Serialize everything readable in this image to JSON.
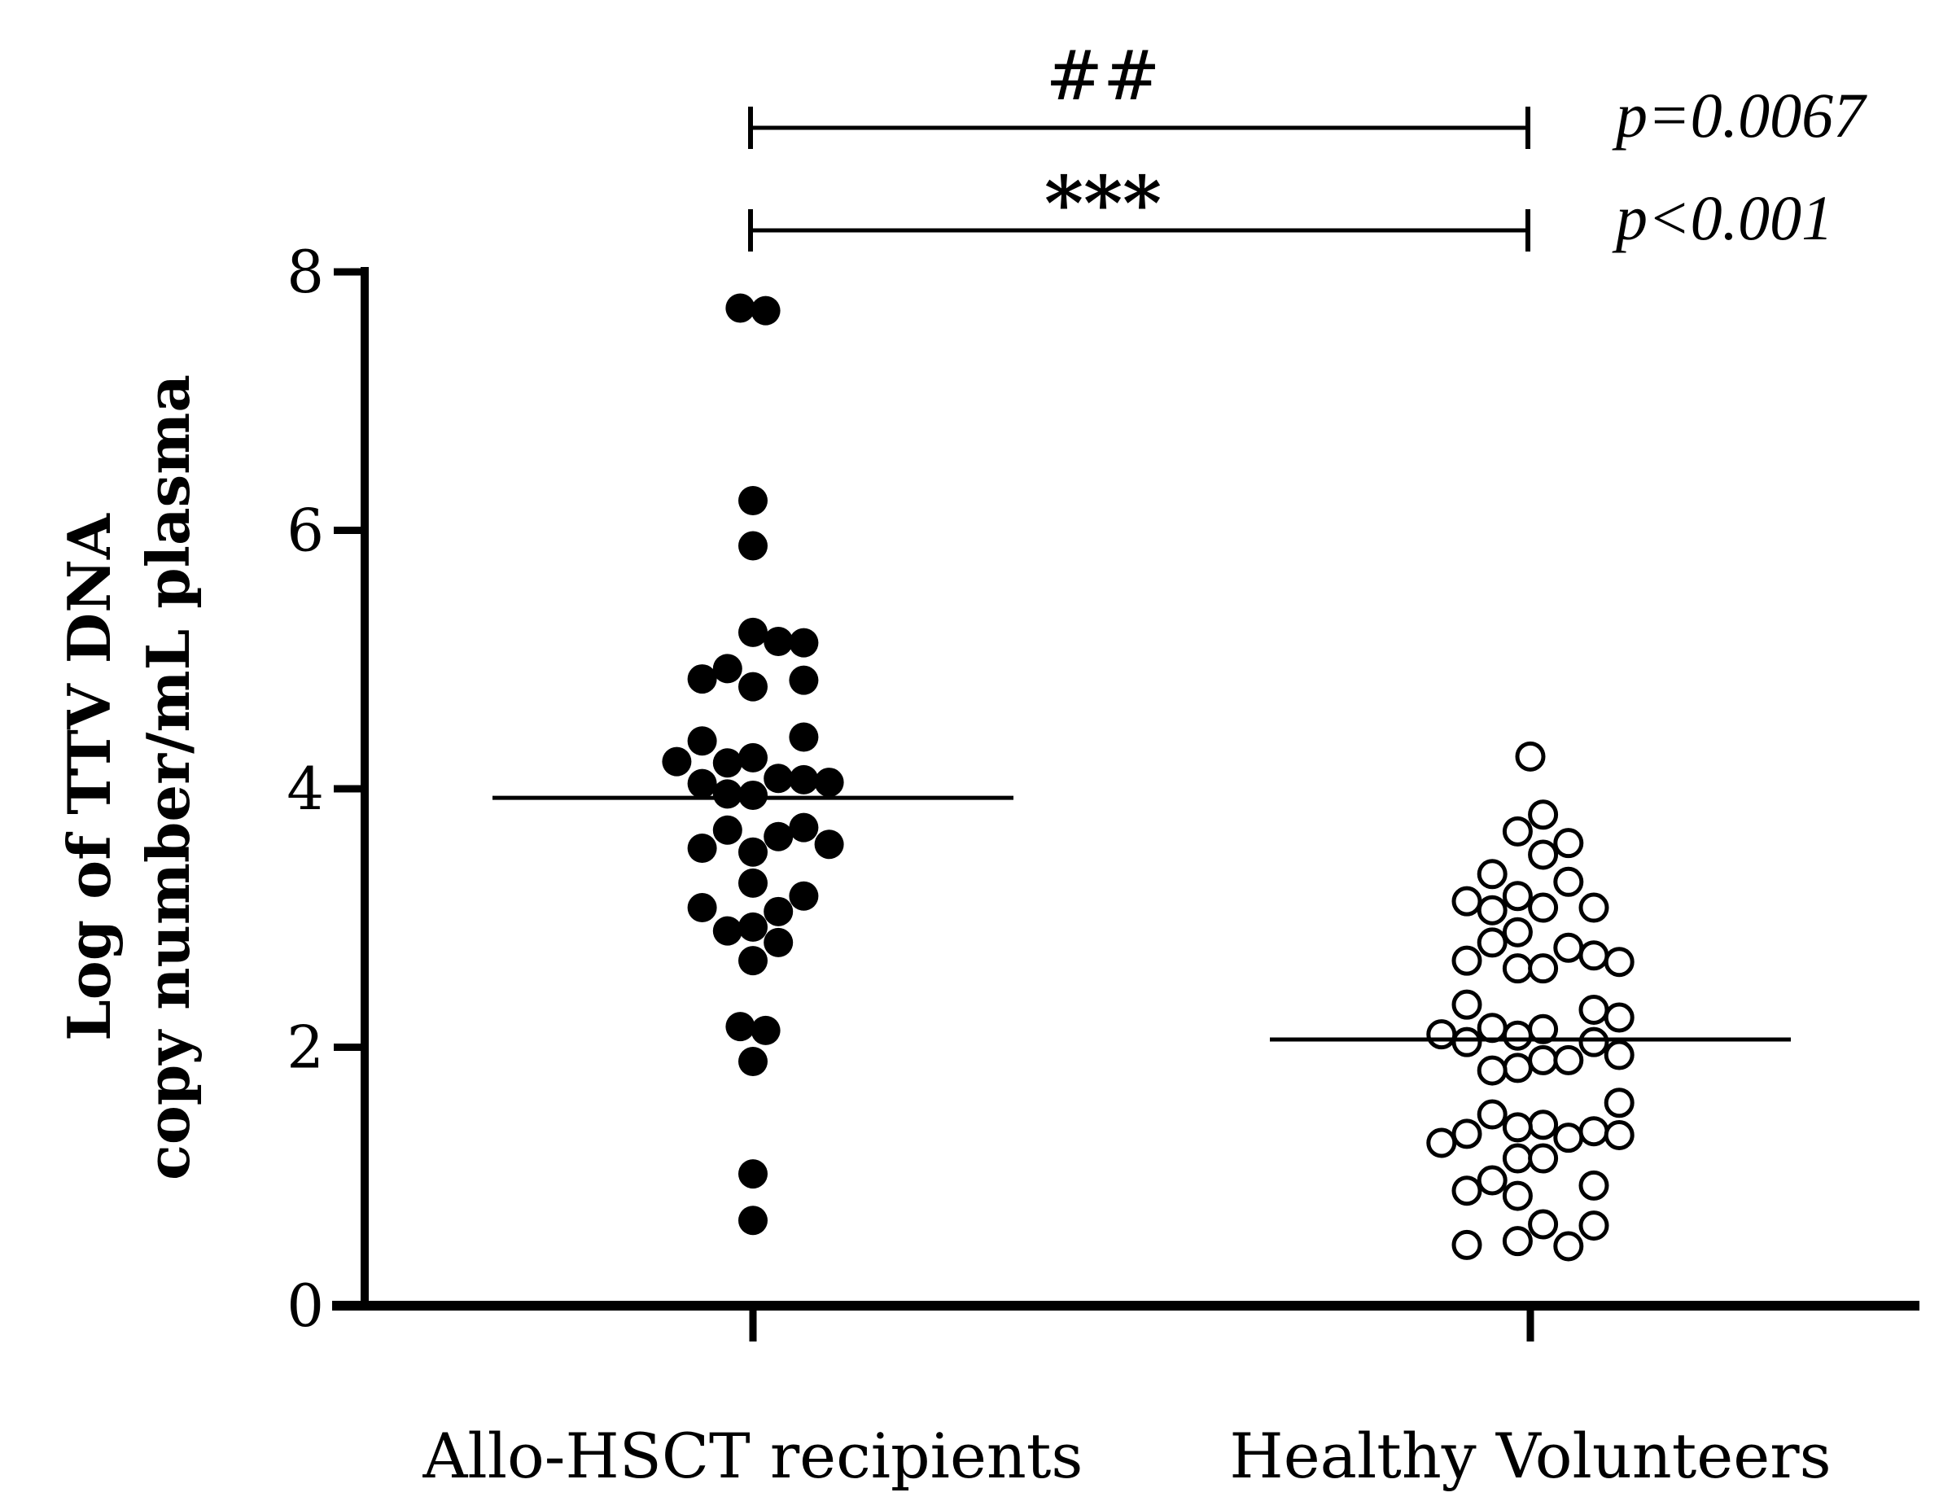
{
  "chart_data": {
    "type": "scatter",
    "subtype": "dot-plot",
    "ylabel_line1": "Log of TTV DNA",
    "ylabel_line2": "copy number/mL plasma",
    "ylim": [
      0,
      8
    ],
    "yticks": [
      0,
      2,
      4,
      6,
      8
    ],
    "ytick_labels": [
      "0",
      "2",
      "4",
      "6",
      "8"
    ],
    "categories": [
      "Allo-HSCT recipients",
      "Healthy Volunteers"
    ],
    "series": [
      {
        "name": "Allo-HSCT recipients",
        "marker": "filled-circle",
        "median": 3.93,
        "points": [
          {
            "x": -0.04,
            "y": 7.72
          },
          {
            "x": 0.04,
            "y": 7.7
          },
          {
            "x": 0.0,
            "y": 6.23
          },
          {
            "x": 0.0,
            "y": 5.88
          },
          {
            "x": 0.0,
            "y": 5.21
          },
          {
            "x": 0.08,
            "y": 5.14
          },
          {
            "x": 0.16,
            "y": 5.13
          },
          {
            "x": -0.08,
            "y": 4.93
          },
          {
            "x": -0.16,
            "y": 4.85
          },
          {
            "x": 0.16,
            "y": 4.84
          },
          {
            "x": 0.0,
            "y": 4.79
          },
          {
            "x": 0.16,
            "y": 4.4
          },
          {
            "x": -0.16,
            "y": 4.37
          },
          {
            "x": 0.0,
            "y": 4.24
          },
          {
            "x": -0.24,
            "y": 4.21
          },
          {
            "x": -0.08,
            "y": 4.2
          },
          {
            "x": 0.08,
            "y": 4.08
          },
          {
            "x": 0.16,
            "y": 4.07
          },
          {
            "x": 0.24,
            "y": 4.05
          },
          {
            "x": -0.16,
            "y": 4.04
          },
          {
            "x": -0.08,
            "y": 3.96
          },
          {
            "x": 0.0,
            "y": 3.95
          },
          {
            "x": 0.16,
            "y": 3.7
          },
          {
            "x": -0.08,
            "y": 3.68
          },
          {
            "x": 0.08,
            "y": 3.63
          },
          {
            "x": 0.24,
            "y": 3.57
          },
          {
            "x": -0.16,
            "y": 3.54
          },
          {
            "x": 0.0,
            "y": 3.51
          },
          {
            "x": 0.0,
            "y": 3.27
          },
          {
            "x": 0.16,
            "y": 3.17
          },
          {
            "x": -0.16,
            "y": 3.08
          },
          {
            "x": 0.08,
            "y": 3.05
          },
          {
            "x": 0.0,
            "y": 2.93
          },
          {
            "x": -0.08,
            "y": 2.9
          },
          {
            "x": 0.08,
            "y": 2.81
          },
          {
            "x": 0.0,
            "y": 2.67
          },
          {
            "x": -0.04,
            "y": 2.16
          },
          {
            "x": 0.04,
            "y": 2.13
          },
          {
            "x": 0.0,
            "y": 1.89
          },
          {
            "x": 0.0,
            "y": 1.02
          },
          {
            "x": 0.0,
            "y": 0.66
          }
        ]
      },
      {
        "name": "Healthy Volunteers",
        "marker": "open-circle",
        "median": 2.06,
        "points": [
          {
            "x": 0.0,
            "y": 4.25
          },
          {
            "x": 0.04,
            "y": 3.8
          },
          {
            "x": -0.04,
            "y": 3.67
          },
          {
            "x": 0.12,
            "y": 3.58
          },
          {
            "x": 0.04,
            "y": 3.49
          },
          {
            "x": -0.12,
            "y": 3.34
          },
          {
            "x": 0.12,
            "y": 3.28
          },
          {
            "x": -0.04,
            "y": 3.17
          },
          {
            "x": -0.2,
            "y": 3.13
          },
          {
            "x": 0.04,
            "y": 3.08
          },
          {
            "x": 0.2,
            "y": 3.08
          },
          {
            "x": -0.12,
            "y": 3.06
          },
          {
            "x": -0.04,
            "y": 2.89
          },
          {
            "x": -0.12,
            "y": 2.81
          },
          {
            "x": 0.12,
            "y": 2.77
          },
          {
            "x": 0.2,
            "y": 2.71
          },
          {
            "x": -0.2,
            "y": 2.67
          },
          {
            "x": 0.28,
            "y": 2.66
          },
          {
            "x": -0.04,
            "y": 2.61
          },
          {
            "x": 0.04,
            "y": 2.61
          },
          {
            "x": -0.2,
            "y": 2.33
          },
          {
            "x": 0.2,
            "y": 2.29
          },
          {
            "x": 0.28,
            "y": 2.23
          },
          {
            "x": -0.12,
            "y": 2.15
          },
          {
            "x": 0.04,
            "y": 2.14
          },
          {
            "x": -0.28,
            "y": 2.1
          },
          {
            "x": -0.04,
            "y": 2.09
          },
          {
            "x": -0.2,
            "y": 2.04
          },
          {
            "x": 0.2,
            "y": 2.04
          },
          {
            "x": 0.28,
            "y": 1.94
          },
          {
            "x": 0.04,
            "y": 1.9
          },
          {
            "x": 0.12,
            "y": 1.9
          },
          {
            "x": -0.04,
            "y": 1.84
          },
          {
            "x": -0.12,
            "y": 1.82
          },
          {
            "x": 0.28,
            "y": 1.57
          },
          {
            "x": -0.12,
            "y": 1.48
          },
          {
            "x": 0.04,
            "y": 1.4
          },
          {
            "x": -0.04,
            "y": 1.38
          },
          {
            "x": 0.2,
            "y": 1.35
          },
          {
            "x": -0.2,
            "y": 1.33
          },
          {
            "x": 0.28,
            "y": 1.32
          },
          {
            "x": 0.12,
            "y": 1.3
          },
          {
            "x": -0.28,
            "y": 1.26
          },
          {
            "x": -0.04,
            "y": 1.14
          },
          {
            "x": 0.04,
            "y": 1.14
          },
          {
            "x": -0.12,
            "y": 0.97
          },
          {
            "x": 0.2,
            "y": 0.93
          },
          {
            "x": -0.2,
            "y": 0.89
          },
          {
            "x": -0.04,
            "y": 0.85
          },
          {
            "x": 0.04,
            "y": 0.63
          },
          {
            "x": 0.2,
            "y": 0.62
          },
          {
            "x": -0.04,
            "y": 0.5
          },
          {
            "x": -0.2,
            "y": 0.47
          },
          {
            "x": 0.12,
            "y": 0.46
          }
        ]
      }
    ],
    "annotations": [
      {
        "symbol": "##",
        "p_text": "p=0.0067",
        "from": "Allo-HSCT recipients",
        "to": "Healthy Volunteers"
      },
      {
        "symbol": "***",
        "p_text": "p<0.001",
        "from": "Allo-HSCT recipients",
        "to": "Healthy Volunteers"
      }
    ],
    "colors": {
      "ink": "#000000",
      "background": "#ffffff"
    }
  }
}
